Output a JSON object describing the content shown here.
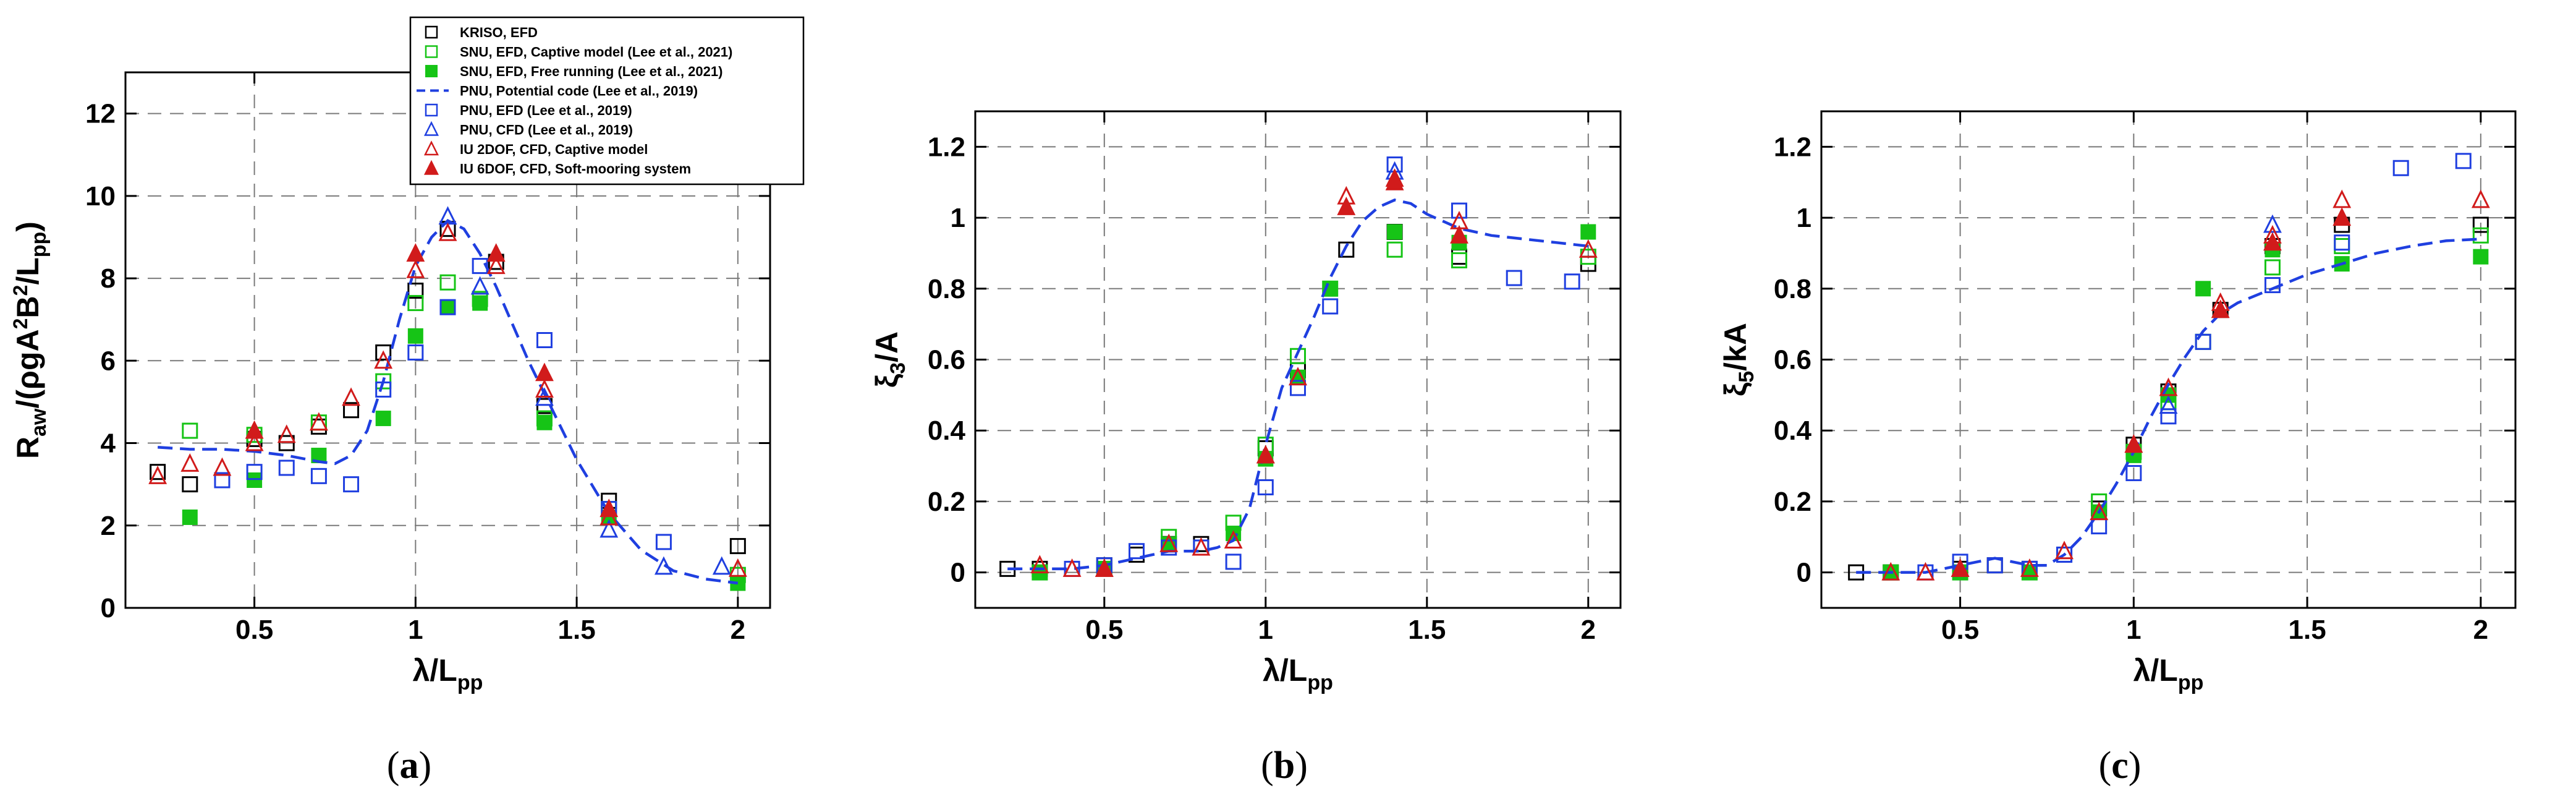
{
  "figure": {
    "panels": [
      {
        "label": "(a)",
        "label_parts": {
          "open": "(",
          "letter": "a",
          "close": ")"
        },
        "ylabel_main": "R",
        "ylabel_sub": "aw",
        "ylabel_rest": "/(ρgA",
        "ylabel_sup": "2",
        "ylabel_b": "B",
        "ylabel_sup2": "2",
        "ylabel_tail": "/L",
        "ylabel_tail_sub": "pp",
        "ylabel_close": ")"
      },
      {
        "label": "(b)",
        "label_parts": {
          "open": "(",
          "letter": "b",
          "close": ")"
        },
        "ylabel_main": "ξ",
        "ylabel_sub": "3",
        "ylabel_rest": "/A"
      },
      {
        "label": "(c)",
        "label_parts": {
          "open": "(",
          "letter": "c",
          "close": ")"
        },
        "ylabel_main": "ξ",
        "ylabel_sub": "5",
        "ylabel_rest": "/kA"
      }
    ],
    "xlabel_main": "λ/L",
    "xlabel_sub": "pp",
    "legend": [
      {
        "label": "KRISO, EFD",
        "color": "#000000",
        "marker": "square-open"
      },
      {
        "label": "SNU, EFD, Captive model (Lee et al., 2021)",
        "color": "#16c416",
        "marker": "square-open"
      },
      {
        "label": "SNU, EFD, Free running (Lee et al., 2021)",
        "color": "#16c416",
        "marker": "square-filled"
      },
      {
        "label": "PNU, Potential code (Lee et al., 2019)",
        "color": "#1f3fe0",
        "marker": "dashed-line"
      },
      {
        "label": "PNU, EFD (Lee et al., 2019)",
        "color": "#1f3fe0",
        "marker": "square-open"
      },
      {
        "label": "PNU, CFD (Lee et al., 2019)",
        "color": "#1f3fe0",
        "marker": "triangle-open"
      },
      {
        "label": "IU 2DOF, CFD, Captive model",
        "color": "#d11b1b",
        "marker": "triangle-open"
      },
      {
        "label": "IU 6DOF, CFD, Soft-mooring system",
        "color": "#d11b1b",
        "marker": "triangle-filled"
      }
    ]
  },
  "chart_data": [
    {
      "type": "scatter",
      "title": "",
      "xlabel": "λ/Lpp",
      "ylabel": "Raw/(ρgA²B²/Lpp)",
      "xlim": [
        0.1,
        2.1
      ],
      "ylim": [
        0,
        13
      ],
      "xticks": [
        0.5,
        1,
        1.5,
        2
      ],
      "xtick_labels": [
        "0.5",
        "1",
        "1.5",
        "2"
      ],
      "yticks": [
        0,
        2,
        4,
        6,
        8,
        10,
        12
      ],
      "ytick_labels": [
        "0",
        "2",
        "4",
        "6",
        "8",
        "10",
        "12"
      ],
      "series": [
        {
          "name": "KRISO, EFD",
          "marker": "square-open",
          "color": "#000000",
          "x": [
            0.2,
            0.3,
            0.5,
            0.6,
            0.7,
            0.8,
            0.9,
            1.0,
            1.1,
            1.25,
            1.4,
            1.6,
            2.0
          ],
          "y": [
            3.3,
            3.0,
            4.1,
            4.0,
            4.4,
            4.8,
            6.2,
            7.7,
            9.2,
            8.4,
            4.9,
            2.6,
            1.5
          ]
        },
        {
          "name": "SNU, EFD, Captive model (Lee et al., 2021)",
          "marker": "square-open",
          "color": "#16c416",
          "x": [
            0.3,
            0.5,
            0.7,
            0.9,
            1.0,
            1.1,
            1.2,
            1.4,
            1.6,
            2.0
          ],
          "y": [
            4.3,
            4.2,
            4.5,
            5.5,
            7.4,
            7.9,
            7.5,
            4.6,
            2.4,
            0.8
          ]
        },
        {
          "name": "SNU, EFD, Free running (Lee et al., 2021)",
          "marker": "square-filled",
          "color": "#16c416",
          "x": [
            0.3,
            0.5,
            0.7,
            0.9,
            1.0,
            1.1,
            1.2,
            1.4,
            1.6,
            2.0
          ],
          "y": [
            2.2,
            3.1,
            3.7,
            4.6,
            6.6,
            7.3,
            7.4,
            4.5,
            2.2,
            0.6
          ]
        },
        {
          "name": "PNU, Potential code (Lee et al., 2019)",
          "marker": "dashed-line",
          "color": "#1f3fe0",
          "x": [
            0.2,
            0.3,
            0.4,
            0.5,
            0.6,
            0.7,
            0.75,
            0.8,
            0.85,
            0.9,
            0.95,
            1.0,
            1.05,
            1.1,
            1.15,
            1.2,
            1.25,
            1.3,
            1.35,
            1.4,
            1.5,
            1.6,
            1.7,
            1.8,
            1.9,
            2.0
          ],
          "y": [
            3.9,
            3.85,
            3.85,
            3.8,
            3.7,
            3.55,
            3.5,
            3.7,
            4.3,
            5.5,
            7.0,
            8.3,
            9.0,
            9.4,
            9.2,
            8.6,
            7.8,
            6.9,
            6.0,
            5.2,
            3.6,
            2.3,
            1.4,
            0.9,
            0.7,
            0.6
          ]
        },
        {
          "name": "PNU, EFD (Lee et al., 2019)",
          "marker": "square-open",
          "color": "#1f3fe0",
          "x": [
            0.4,
            0.5,
            0.6,
            0.7,
            0.8,
            0.9,
            1.0,
            1.1,
            1.2,
            1.4,
            1.6,
            1.77
          ],
          "y": [
            3.1,
            3.3,
            3.4,
            3.2,
            3.0,
            5.3,
            6.2,
            7.3,
            8.3,
            6.5,
            2.4,
            1.6
          ]
        },
        {
          "name": "PNU, CFD (Lee et al., 2019)",
          "marker": "triangle-open",
          "color": "#1f3fe0",
          "x": [
            1.1,
            1.2,
            1.4,
            1.6,
            1.77,
            1.95
          ],
          "y": [
            9.5,
            7.8,
            5.1,
            1.9,
            1.0,
            1.0
          ]
        },
        {
          "name": "IU 2DOF, CFD, Captive model",
          "marker": "triangle-open",
          "color": "#d11b1b",
          "x": [
            0.2,
            0.3,
            0.4,
            0.5,
            0.6,
            0.7,
            0.8,
            0.9,
            1.0,
            1.1,
            1.25,
            1.4,
            1.6,
            2.0
          ],
          "y": [
            3.2,
            3.5,
            3.4,
            4.0,
            4.2,
            4.5,
            5.1,
            6.0,
            8.2,
            9.1,
            8.3,
            5.3,
            2.2,
            0.95
          ]
        },
        {
          "name": "IU 6DOF, CFD, Soft-mooring system",
          "marker": "triangle-filled",
          "color": "#d11b1b",
          "x": [
            0.5,
            1.0,
            1.25,
            1.4,
            1.6
          ],
          "y": [
            4.3,
            8.6,
            8.6,
            5.7,
            2.4
          ]
        }
      ]
    },
    {
      "type": "scatter",
      "title": "",
      "xlabel": "λ/Lpp",
      "ylabel": "ξ3/A",
      "xlim": [
        0.1,
        2.1
      ],
      "ylim": [
        -0.1,
        1.3
      ],
      "xticks": [
        0.5,
        1,
        1.5,
        2
      ],
      "xtick_labels": [
        "0.5",
        "1",
        "1.5",
        "2"
      ],
      "yticks": [
        0,
        0.2,
        0.4,
        0.6,
        0.8,
        1,
        1.2
      ],
      "ytick_labels": [
        "0",
        "0.2",
        "0.4",
        "0.6",
        "0.8",
        "1",
        "1.2"
      ],
      "series": [
        {
          "name": "KRISO, EFD",
          "marker": "square-open",
          "color": "#000000",
          "x": [
            0.2,
            0.3,
            0.5,
            0.6,
            0.7,
            0.8,
            1.0,
            1.1,
            1.25,
            1.4,
            1.6,
            2.0
          ],
          "y": [
            0.01,
            0.01,
            0.02,
            0.05,
            0.08,
            0.08,
            0.35,
            0.57,
            0.91,
            0.96,
            0.89,
            0.87
          ]
        },
        {
          "name": "SNU, EFD, Captive model (Lee et al., 2021)",
          "marker": "square-open",
          "color": "#16c416",
          "x": [
            0.3,
            0.5,
            0.7,
            0.9,
            1.0,
            1.1,
            1.2,
            1.4,
            1.6,
            2.0
          ],
          "y": [
            0.0,
            0.01,
            0.1,
            0.14,
            0.36,
            0.61,
            0.8,
            0.91,
            0.88,
            0.89
          ]
        },
        {
          "name": "SNU, EFD, Free running (Lee et al., 2021)",
          "marker": "square-filled",
          "color": "#16c416",
          "x": [
            0.3,
            0.5,
            0.7,
            0.9,
            1.0,
            1.1,
            1.2,
            1.4,
            1.6,
            2.0
          ],
          "y": [
            0.0,
            0.01,
            0.08,
            0.11,
            0.32,
            0.55,
            0.8,
            0.96,
            0.93,
            0.96
          ]
        },
        {
          "name": "PNU, Potential code (Lee et al., 2019)",
          "marker": "dashed-line",
          "color": "#1f3fe0",
          "x": [
            0.2,
            0.3,
            0.4,
            0.5,
            0.6,
            0.7,
            0.8,
            0.85,
            0.9,
            0.95,
            1.0,
            1.05,
            1.1,
            1.15,
            1.2,
            1.25,
            1.3,
            1.35,
            1.4,
            1.45,
            1.5,
            1.6,
            1.7,
            1.8,
            1.9,
            2.0
          ],
          "y": [
            0.01,
            0.01,
            0.01,
            0.02,
            0.04,
            0.06,
            0.06,
            0.07,
            0.09,
            0.18,
            0.36,
            0.52,
            0.62,
            0.72,
            0.83,
            0.92,
            0.99,
            1.03,
            1.05,
            1.04,
            1.01,
            0.97,
            0.95,
            0.94,
            0.93,
            0.92
          ]
        },
        {
          "name": "PNU, EFD (Lee et al., 2019)",
          "marker": "square-open",
          "color": "#1f3fe0",
          "x": [
            0.4,
            0.5,
            0.6,
            0.7,
            0.8,
            0.9,
            1.0,
            1.1,
            1.2,
            1.4,
            1.6,
            1.77,
            1.95
          ],
          "y": [
            0.01,
            0.02,
            0.06,
            0.07,
            0.07,
            0.03,
            0.24,
            0.52,
            0.75,
            1.15,
            1.02,
            0.83,
            0.82
          ]
        },
        {
          "name": "PNU, CFD (Lee et al., 2019)",
          "marker": "triangle-open",
          "color": "#1f3fe0",
          "x": [
            1.1,
            1.4
          ],
          "y": [
            0.55,
            1.13
          ]
        },
        {
          "name": "IU 2DOF, CFD, Captive model",
          "marker": "triangle-open",
          "color": "#d11b1b",
          "x": [
            0.3,
            0.4,
            0.5,
            0.7,
            0.8,
            0.9,
            1.0,
            1.1,
            1.25,
            1.4,
            1.6,
            2.0
          ],
          "y": [
            0.02,
            0.01,
            0.01,
            0.08,
            0.07,
            0.09,
            0.33,
            0.55,
            1.06,
            1.11,
            0.99,
            0.91
          ]
        },
        {
          "name": "IU 6DOF, CFD, Soft-mooring system",
          "marker": "triangle-filled",
          "color": "#d11b1b",
          "x": [
            0.5,
            1.0,
            1.25,
            1.4,
            1.6
          ],
          "y": [
            0.01,
            0.33,
            1.03,
            1.1,
            0.95
          ]
        }
      ]
    },
    {
      "type": "scatter",
      "title": "",
      "xlabel": "λ/Lpp",
      "ylabel": "ξ5/kA",
      "xlim": [
        0.1,
        2.1
      ],
      "ylim": [
        -0.1,
        1.3
      ],
      "xticks": [
        0.5,
        1,
        1.5,
        2
      ],
      "xtick_labels": [
        "0.5",
        "1",
        "1.5",
        "2"
      ],
      "yticks": [
        0,
        0.2,
        0.4,
        0.6,
        0.8,
        1,
        1.2
      ],
      "ytick_labels": [
        "0",
        "0.2",
        "0.4",
        "0.6",
        "0.8",
        "1",
        "1.2"
      ],
      "series": [
        {
          "name": "KRISO, EFD",
          "marker": "square-open",
          "color": "#000000",
          "x": [
            0.2,
            0.3,
            0.5,
            0.6,
            0.7,
            0.8,
            0.9,
            1.0,
            1.1,
            1.25,
            1.4,
            1.6,
            2.0
          ],
          "y": [
            0.0,
            0.0,
            0.01,
            0.02,
            0.01,
            0.05,
            0.18,
            0.36,
            0.51,
            0.74,
            0.92,
            0.98,
            0.98
          ]
        },
        {
          "name": "SNU, EFD, Captive model (Lee et al., 2021)",
          "marker": "square-open",
          "color": "#16c416",
          "x": [
            0.3,
            0.5,
            0.7,
            0.9,
            1.0,
            1.1,
            1.2,
            1.4,
            1.6,
            2.0
          ],
          "y": [
            0.0,
            0.0,
            0.0,
            0.2,
            0.34,
            0.48,
            0.65,
            0.86,
            0.92,
            0.95
          ]
        },
        {
          "name": "SNU, EFD, Free running (Lee et al., 2021)",
          "marker": "square-filled",
          "color": "#16c416",
          "x": [
            0.3,
            0.5,
            0.7,
            0.9,
            1.0,
            1.1,
            1.2,
            1.4,
            1.6,
            2.0
          ],
          "y": [
            0.0,
            0.0,
            0.0,
            0.17,
            0.33,
            0.5,
            0.8,
            0.91,
            0.87,
            0.89
          ]
        },
        {
          "name": "PNU, Potential code (Lee et al., 2019)",
          "marker": "dashed-line",
          "color": "#1f3fe0",
          "x": [
            0.2,
            0.3,
            0.4,
            0.5,
            0.6,
            0.65,
            0.7,
            0.75,
            0.8,
            0.85,
            0.9,
            0.95,
            1.0,
            1.05,
            1.1,
            1.15,
            1.2,
            1.25,
            1.3,
            1.4,
            1.5,
            1.6,
            1.7,
            1.8,
            1.9,
            2.0
          ],
          "y": [
            0.0,
            0.0,
            0.0,
            0.02,
            0.04,
            0.03,
            0.02,
            0.02,
            0.05,
            0.1,
            0.17,
            0.25,
            0.34,
            0.44,
            0.53,
            0.61,
            0.68,
            0.73,
            0.76,
            0.8,
            0.84,
            0.87,
            0.9,
            0.92,
            0.935,
            0.94
          ]
        },
        {
          "name": "PNU, EFD (Lee et al., 2019)",
          "marker": "square-open",
          "color": "#1f3fe0",
          "x": [
            0.4,
            0.5,
            0.6,
            0.7,
            0.8,
            0.9,
            1.0,
            1.1,
            1.2,
            1.4,
            1.6,
            1.77,
            1.95
          ],
          "y": [
            0.0,
            0.03,
            0.02,
            0.01,
            0.05,
            0.13,
            0.28,
            0.44,
            0.65,
            0.81,
            0.93,
            1.14,
            1.16
          ]
        },
        {
          "name": "PNU, CFD (Lee et al., 2019)",
          "marker": "triangle-open",
          "color": "#1f3fe0",
          "x": [
            1.1,
            1.4
          ],
          "y": [
            0.47,
            0.98
          ]
        },
        {
          "name": "IU 2DOF, CFD, Captive model",
          "marker": "triangle-open",
          "color": "#d11b1b",
          "x": [
            0.3,
            0.4,
            0.5,
            0.7,
            0.8,
            0.9,
            1.0,
            1.1,
            1.25,
            1.4,
            1.6,
            2.0
          ],
          "y": [
            0.0,
            0.0,
            0.01,
            0.01,
            0.06,
            0.17,
            0.36,
            0.52,
            0.76,
            0.95,
            1.05,
            1.05
          ]
        },
        {
          "name": "IU 6DOF, CFD, Soft-mooring system",
          "marker": "triangle-filled",
          "color": "#d11b1b",
          "x": [
            0.5,
            1.0,
            1.25,
            1.4,
            1.6
          ],
          "y": [
            0.01,
            0.36,
            0.74,
            0.93,
            1.0
          ]
        }
      ]
    }
  ]
}
